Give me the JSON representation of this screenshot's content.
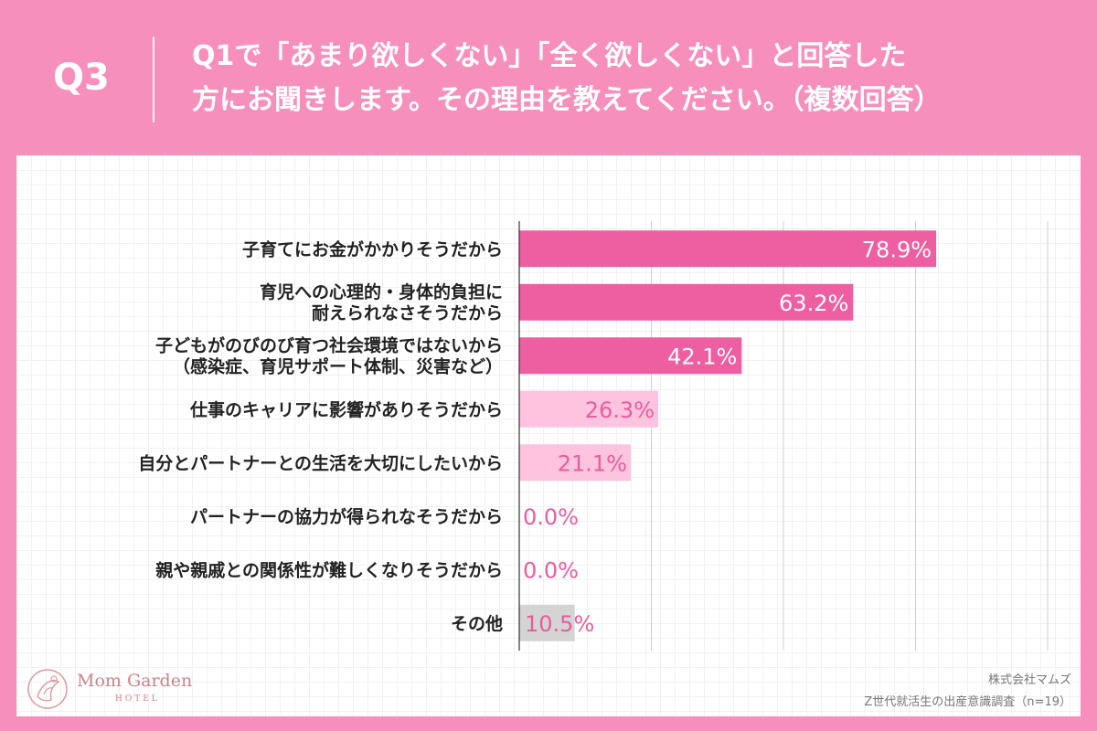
{
  "header": {
    "q_label": "Q3",
    "question_lines": [
      "Q1で「あまり欲しくない」「全く欲しくない」と回答した",
      "方にお聞きします。その理由を教えてください。（複数回答）"
    ]
  },
  "credit": {
    "company": "株式会社マムズ",
    "survey": "Z世代就活生の出産意識調査（n=19）"
  },
  "logo": {
    "name": "Mom Garden",
    "sub": "HOTEL"
  },
  "colors": {
    "background": "#f78fbd",
    "bar_dark": "#ee5fa1",
    "bar_light": "#fdc3df",
    "bar_gray": "#d4d4d4",
    "value_dark_text": "#ffffff",
    "value_light_text": "#e85d9e"
  },
  "chart_data": {
    "type": "bar",
    "orientation": "horizontal",
    "xlim": [
      0,
      100
    ],
    "grid": true,
    "categories": [
      [
        "子育てにお金がかかりそうだから"
      ],
      [
        "育児への心理的・身体的負担に",
        "耐えられなさそうだから"
      ],
      [
        "子どもがのびのび育つ社会環境ではないから",
        "（感染症、育児サポート体制、災害など）"
      ],
      [
        "仕事のキャリアに影響がありそうだから"
      ],
      [
        "自分とパートナーとの生活を大切にしたいから"
      ],
      [
        "パートナーの協力が得られなそうだから"
      ],
      [
        "親や親戚との関係性が難しくなりそうだから"
      ],
      [
        "その他"
      ]
    ],
    "values": [
      78.9,
      63.2,
      42.1,
      26.3,
      21.1,
      0.0,
      0.0,
      10.5
    ],
    "value_labels": [
      "78.9%",
      "63.2%",
      "42.1%",
      "26.3%",
      "21.1%",
      "0.0%",
      "0.0%",
      "10.5%"
    ],
    "bar_styles": [
      "dark",
      "dark",
      "dark",
      "light",
      "light",
      "light",
      "light",
      "gray"
    ]
  }
}
